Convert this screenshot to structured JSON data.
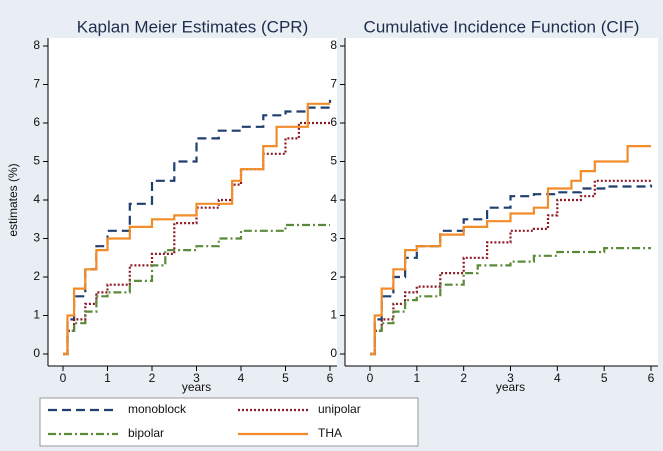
{
  "chart_data": [
    {
      "type": "line",
      "title": "Kaplan Meier Estimates (CPR)",
      "y_label": "estimates (%)",
      "x_label": "years",
      "xlim": [
        0,
        6
      ],
      "ylim": [
        0,
        8
      ],
      "xticks": [
        0,
        1,
        2,
        3,
        4,
        5,
        6
      ],
      "yticks": [
        0,
        1,
        2,
        3,
        4,
        5,
        6,
        7,
        8
      ],
      "series": [
        {
          "name": "monoblock",
          "color": "#1f3f6e",
          "x": [
            0,
            0.1,
            0.25,
            0.5,
            0.75,
            1,
            1.5,
            2,
            2.5,
            3,
            3.5,
            4,
            4.5,
            5,
            5.5,
            6
          ],
          "values": [
            0,
            0.9,
            1.5,
            2.2,
            2.8,
            3.2,
            3.9,
            4.5,
            5.0,
            5.6,
            5.8,
            5.9,
            6.2,
            6.3,
            6.4,
            6.6
          ]
        },
        {
          "name": "unipolar",
          "color": "#8b1a24",
          "x": [
            0,
            0.1,
            0.25,
            0.5,
            0.75,
            1,
            1.5,
            2,
            2.5,
            3,
            3.5,
            3.8,
            4,
            4.5,
            5,
            5.3,
            6
          ],
          "values": [
            0,
            0.6,
            0.9,
            1.3,
            1.6,
            1.8,
            2.3,
            2.6,
            3.4,
            3.8,
            4.0,
            4.4,
            4.8,
            5.2,
            5.6,
            6.0,
            6.0
          ]
        },
        {
          "name": "bipolar",
          "color": "#5b8a3a",
          "x": [
            0,
            0.1,
            0.25,
            0.5,
            0.75,
            1,
            1.5,
            2,
            2.3,
            3,
            3.5,
            4,
            4.5,
            5,
            6
          ],
          "values": [
            0,
            0.6,
            0.8,
            1.1,
            1.5,
            1.6,
            1.9,
            2.3,
            2.7,
            2.8,
            3.0,
            3.2,
            3.2,
            3.35,
            3.35
          ]
        },
        {
          "name": "THA",
          "color": "#f28c28",
          "x": [
            0,
            0.1,
            0.25,
            0.5,
            0.75,
            1,
            1.5,
            2,
            2.5,
            3,
            3.5,
            3.8,
            4,
            4.5,
            4.8,
            5.5,
            6
          ],
          "values": [
            0,
            1.0,
            1.7,
            2.2,
            2.7,
            3.0,
            3.3,
            3.5,
            3.6,
            3.9,
            3.9,
            4.5,
            4.8,
            5.4,
            5.9,
            6.5,
            6.5
          ]
        }
      ]
    },
    {
      "type": "line",
      "title": "Cumulative Incidence Function (CIF)",
      "x_label": "years",
      "xlim": [
        0,
        6
      ],
      "ylim": [
        0,
        8
      ],
      "xticks": [
        0,
        1,
        2,
        3,
        4,
        5,
        6
      ],
      "yticks": [
        0,
        1,
        2,
        3,
        4,
        5,
        6,
        7,
        8
      ],
      "series": [
        {
          "color": "#1f3f6e",
          "x": [
            0,
            0.1,
            0.25,
            0.5,
            0.75,
            1,
            1.5,
            2,
            2.5,
            3,
            3.5,
            4,
            4.5,
            5,
            6
          ],
          "values": [
            0,
            0.9,
            1.5,
            2.0,
            2.5,
            2.8,
            3.2,
            3.5,
            3.8,
            4.1,
            4.15,
            4.2,
            4.3,
            4.35,
            4.4
          ]
        },
        {
          "color": "#8b1a24",
          "x": [
            0,
            0.1,
            0.25,
            0.5,
            0.75,
            1,
            1.5,
            2,
            2.5,
            3,
            3.5,
            3.8,
            4,
            4.5,
            4.8,
            6
          ],
          "values": [
            0,
            0.6,
            0.9,
            1.3,
            1.6,
            1.75,
            2.1,
            2.5,
            2.9,
            3.2,
            3.25,
            3.6,
            4.0,
            4.1,
            4.5,
            4.5
          ]
        },
        {
          "color": "#5b8a3a",
          "x": [
            0,
            0.1,
            0.25,
            0.5,
            0.75,
            1,
            1.5,
            2,
            2.3,
            3,
            3.5,
            4,
            4.5,
            5,
            6
          ],
          "values": [
            0,
            0.6,
            0.8,
            1.1,
            1.4,
            1.5,
            1.8,
            2.1,
            2.3,
            2.4,
            2.55,
            2.65,
            2.65,
            2.75,
            2.75
          ]
        },
        {
          "color": "#f28c28",
          "x": [
            0,
            0.1,
            0.25,
            0.5,
            0.75,
            1,
            1.5,
            2,
            2.5,
            3,
            3.5,
            3.8,
            4.3,
            4.5,
            4.8,
            5.5,
            6
          ],
          "values": [
            0,
            1.0,
            1.7,
            2.2,
            2.7,
            2.8,
            3.1,
            3.3,
            3.45,
            3.65,
            3.8,
            4.3,
            4.5,
            4.75,
            5.0,
            5.4,
            5.4
          ]
        }
      ]
    }
  ]
}
